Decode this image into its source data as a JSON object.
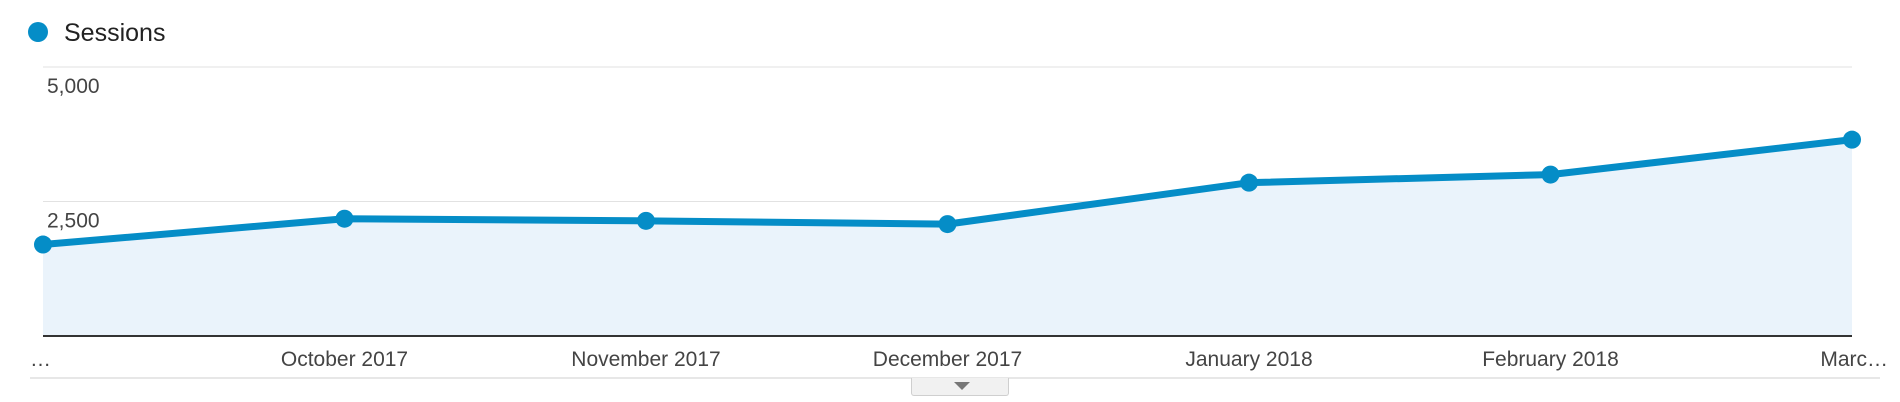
{
  "colors": {
    "series": "#058dc7",
    "area": "#eaf3fb",
    "grid": "#e2e2e2",
    "axis": "#333333"
  },
  "chart_data": {
    "type": "area",
    "categories": [
      "…",
      "October 2017",
      "November 2017",
      "December 2017",
      "January 2018",
      "February 2018",
      "Marc…"
    ],
    "series": [
      {
        "name": "Sessions",
        "values": [
          1700,
          2180,
          2140,
          2080,
          2850,
          3000,
          3650
        ]
      }
    ],
    "ylim": [
      0,
      5000
    ],
    "yticks": [
      {
        "value": 2500,
        "label": "2,500"
      },
      {
        "value": 5000,
        "label": "5,000"
      }
    ],
    "grid": true,
    "legend": "top-left"
  },
  "controls": {
    "expand_icon": "chevron-down-icon"
  }
}
